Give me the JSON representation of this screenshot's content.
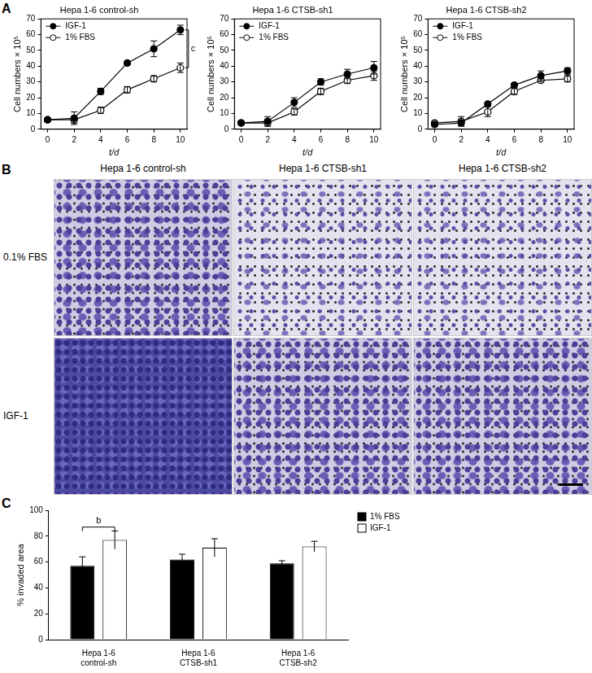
{
  "panel_labels": [
    "A",
    "B",
    "C"
  ],
  "chart_data": [
    {
      "type": "line",
      "title": "Hepa 1-6 control-sh",
      "x_label": "t/d",
      "y_label": "Cell numbers × 10⁵",
      "x": [
        0,
        2,
        4,
        6,
        8,
        10
      ],
      "xlim": [
        -0.5,
        10.5
      ],
      "xticks": [
        0,
        2,
        4,
        6,
        8,
        10
      ],
      "ylim": [
        0,
        70
      ],
      "yticks": [
        0,
        10,
        20,
        30,
        40,
        50,
        60,
        70
      ],
      "grid": false,
      "legend": "upper left",
      "series": [
        {
          "name": "IGF-1",
          "color": "#000000",
          "marker": "circle",
          "values": [
            6,
            7,
            24,
            42,
            51,
            63
          ],
          "errors": [
            1,
            4,
            2,
            1,
            5,
            3
          ]
        },
        {
          "name": "1% FBS",
          "color": "#000000",
          "marker": "open_circle",
          "values": [
            6,
            6,
            12,
            25,
            32,
            39
          ],
          "errors": [
            1,
            2,
            2,
            2,
            2,
            3
          ]
        }
      ],
      "annotations": [
        {
          "text": "c",
          "x": 10,
          "y": [
            63,
            39
          ]
        }
      ]
    },
    {
      "type": "line",
      "title": "Hepa 1-6 CTSB-sh1",
      "x_label": "t/d",
      "y_label": "Cell numbers × 10⁵",
      "x": [
        0,
        2,
        4,
        6,
        8,
        10
      ],
      "xlim": [
        -0.5,
        10.5
      ],
      "xticks": [
        0,
        2,
        4,
        6,
        8,
        10
      ],
      "ylim": [
        0,
        70
      ],
      "yticks": [
        0,
        10,
        20,
        30,
        40,
        50,
        60,
        70
      ],
      "grid": false,
      "legend": "upper left",
      "series": [
        {
          "name": "IGF-1",
          "color": "#000000",
          "marker": "circle",
          "values": [
            4,
            5,
            17,
            30,
            35,
            39
          ],
          "errors": [
            1,
            3,
            3,
            2,
            3,
            4
          ]
        },
        {
          "name": "1% FBS",
          "color": "#000000",
          "marker": "open_circle",
          "values": [
            4,
            4,
            11,
            24,
            31,
            34
          ],
          "errors": [
            1,
            2,
            2,
            2,
            2,
            3
          ]
        }
      ]
    },
    {
      "type": "line",
      "title": "Hepa 1-6 CTSB-sh2",
      "x_label": "t/d",
      "y_label": "Cell numbers × 10⁵",
      "x": [
        0,
        2,
        4,
        6,
        8,
        10
      ],
      "xlim": [
        -0.5,
        10.5
      ],
      "xticks": [
        0,
        2,
        4,
        6,
        8,
        10
      ],
      "ylim": [
        0,
        70
      ],
      "yticks": [
        0,
        10,
        20,
        30,
        40,
        50,
        60,
        70
      ],
      "grid": false,
      "legend": "upper left",
      "series": [
        {
          "name": "IGF-1",
          "color": "#000000",
          "marker": "circle",
          "values": [
            3,
            4,
            16,
            28,
            34,
            37
          ],
          "errors": [
            1,
            2,
            1,
            1,
            3,
            2
          ]
        },
        {
          "name": "1% FBS",
          "color": "#000000",
          "marker": "open_circle",
          "values": [
            4,
            5,
            11,
            24,
            31,
            32
          ],
          "errors": [
            1,
            3,
            3,
            2,
            1,
            2
          ]
        }
      ]
    },
    {
      "type": "bar",
      "y_label": "% invaded area",
      "categories": [
        "Hepa 1-6 control-sh",
        "Hepa 1-6 CTSB-sh1",
        "Hepa 1-6 CTSB-sh2"
      ],
      "ylim": [
        0,
        100
      ],
      "yticks": [
        0,
        20,
        40,
        60,
        80,
        100
      ],
      "grid": false,
      "legend": "right",
      "series": [
        {
          "name": "1% FBS",
          "color": "#000000",
          "values": [
            57,
            62,
            59
          ],
          "errors": [
            7,
            4,
            2
          ]
        },
        {
          "name": "IGF-1",
          "color": "#ffffff",
          "values": [
            77,
            71,
            72
          ],
          "errors": [
            7,
            7,
            4
          ]
        }
      ],
      "annotations": [
        {
          "text": "b",
          "category": "Hepa 1-6 control-sh",
          "y": 87
        }
      ]
    }
  ],
  "micrographs": {
    "columns": [
      "Hepa 1-6 control-sh",
      "Hepa 1-6 CTSB-sh1",
      "Hepa 1-6 CTSB-sh2"
    ],
    "rows": [
      "0.1% FBS",
      "IGF-1"
    ]
  }
}
